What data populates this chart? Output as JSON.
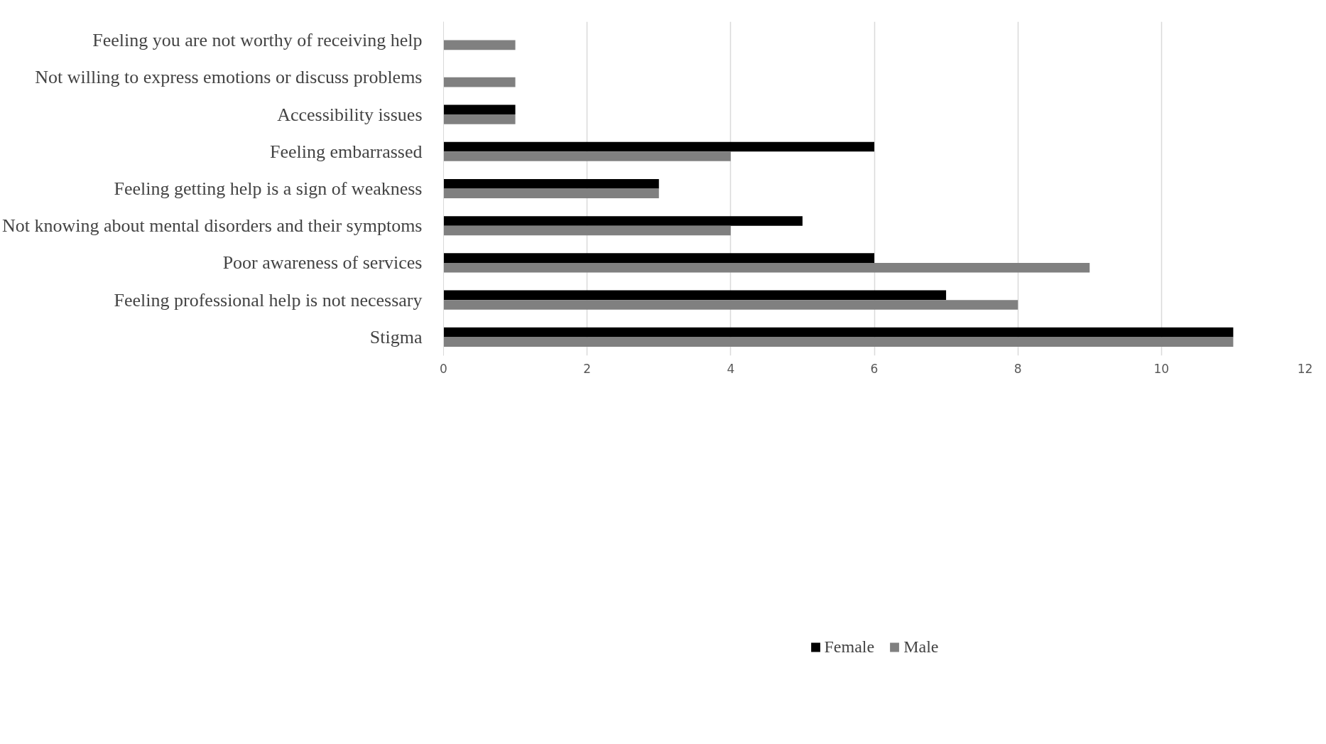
{
  "chart_data": {
    "type": "bar",
    "orientation": "horizontal",
    "categories": [
      "Feeling you are not worthy of receiving help",
      "Not willing to express emotions or discuss problems",
      "Accessibility issues",
      "Feeling embarrassed",
      "Feeling getting help is a sign of weakness",
      "Not knowing about mental disorders and their symptoms",
      "Poor awareness of services",
      "Feeling professional help is not necessary",
      "Stigma"
    ],
    "series": [
      {
        "name": "Female",
        "color": "#000000",
        "values": [
          0,
          0,
          1,
          6,
          3,
          5,
          6,
          7,
          11
        ]
      },
      {
        "name": "Male",
        "color": "#808080",
        "values": [
          1,
          1,
          1,
          4,
          3,
          4,
          9,
          8,
          11
        ]
      }
    ],
    "xlim": [
      0,
      12
    ],
    "xticks": [
      0,
      2,
      4,
      6,
      8,
      10,
      12
    ],
    "grid": "x",
    "legend": "bottom"
  }
}
